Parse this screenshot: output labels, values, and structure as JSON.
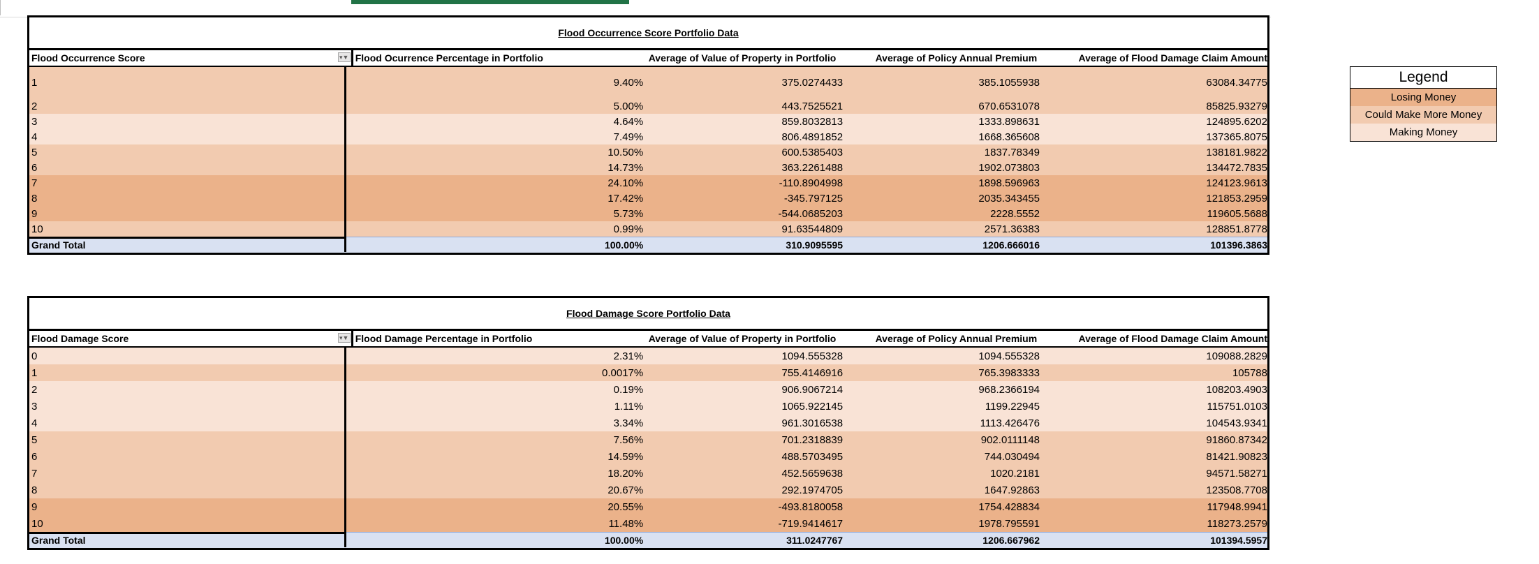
{
  "colors": {
    "losing_money": "#ebb28a",
    "could_make_more_money": "#f2cbb0",
    "making_money": "#f9e3d6",
    "grand_total": "#d9e1f2",
    "selection_accent": "#217346"
  },
  "table1": {
    "title": "Flood Occurrence Score Portfolio Data",
    "headers": [
      "Flood Occurrence Score",
      "Flood Ocurrence Percentage in Portfolio",
      "Average of Value of Property in Portfolio",
      "Average of Policy Annual Premium",
      "Average of Flood Damage Claim Amount"
    ],
    "rows": [
      {
        "score": "1",
        "pct": "9.40%",
        "value": "375.0274433",
        "premium": "385.1055938",
        "claim": "63084.34775",
        "status": "more"
      },
      {
        "score": "2",
        "pct": "5.00%",
        "value": "443.7525521",
        "premium": "670.6531078",
        "claim": "85825.93279",
        "status": "more"
      },
      {
        "score": "3",
        "pct": "4.64%",
        "value": "859.8032813",
        "premium": "1333.898631",
        "claim": "124895.6202",
        "status": "make"
      },
      {
        "score": "4",
        "pct": "7.49%",
        "value": "806.4891852",
        "premium": "1668.365608",
        "claim": "137365.8075",
        "status": "make"
      },
      {
        "score": "5",
        "pct": "10.50%",
        "value": "600.5385403",
        "premium": "1837.78349",
        "claim": "138181.9822",
        "status": "more"
      },
      {
        "score": "6",
        "pct": "14.73%",
        "value": "363.2261488",
        "premium": "1902.073803",
        "claim": "134472.7835",
        "status": "more"
      },
      {
        "score": "7",
        "pct": "24.10%",
        "value": "-110.8904998",
        "premium": "1898.596963",
        "claim": "124123.9613",
        "status": "lose"
      },
      {
        "score": "8",
        "pct": "17.42%",
        "value": "-345.797125",
        "premium": "2035.343455",
        "claim": "121853.2959",
        "status": "lose"
      },
      {
        "score": "9",
        "pct": "5.73%",
        "value": "-544.0685203",
        "premium": "2228.5552",
        "claim": "119605.5688",
        "status": "lose"
      },
      {
        "score": "10",
        "pct": "0.99%",
        "value": "91.63544809",
        "premium": "2571.36383",
        "claim": "128851.8778",
        "status": "more"
      }
    ],
    "total": {
      "label": "Grand Total",
      "pct": "100.00%",
      "value": "310.9095595",
      "premium": "1206.666016",
      "claim": "101396.3863"
    }
  },
  "table2": {
    "title": "Flood Damage Score Portfolio Data",
    "headers": [
      "Flood Damage Score",
      "Flood Damage Percentage in Portfolio",
      "Average of Value of Property in Portfolio",
      "Average of Policy Annual Premium",
      "Average of Flood Damage Claim Amount"
    ],
    "rows": [
      {
        "score": "0",
        "pct": "2.31%",
        "value": "1094.555328",
        "premium": "1094.555328",
        "claim": "109088.2829",
        "status": "make"
      },
      {
        "score": "1",
        "pct": "0.0017%",
        "value": "755.4146916",
        "premium": "765.3983333",
        "claim": "105788",
        "status": "more"
      },
      {
        "score": "2",
        "pct": "0.19%",
        "value": "906.9067214",
        "premium": "968.2366194",
        "claim": "108203.4903",
        "status": "make"
      },
      {
        "score": "3",
        "pct": "1.11%",
        "value": "1065.922145",
        "premium": "1199.22945",
        "claim": "115751.0103",
        "status": "make"
      },
      {
        "score": "4",
        "pct": "3.34%",
        "value": "961.3016538",
        "premium": "1113.426476",
        "claim": "104543.9341",
        "status": "make"
      },
      {
        "score": "5",
        "pct": "7.56%",
        "value": "701.2318839",
        "premium": "902.0111148",
        "claim": "91860.87342",
        "status": "more"
      },
      {
        "score": "6",
        "pct": "14.59%",
        "value": "488.5703495",
        "premium": "744.030494",
        "claim": "81421.90823",
        "status": "more"
      },
      {
        "score": "7",
        "pct": "18.20%",
        "value": "452.5659638",
        "premium": "1020.2181",
        "claim": "94571.58271",
        "status": "more"
      },
      {
        "score": "8",
        "pct": "20.67%",
        "value": "292.1974705",
        "premium": "1647.92863",
        "claim": "123508.7708",
        "status": "more"
      },
      {
        "score": "9",
        "pct": "20.55%",
        "value": "-493.8180058",
        "premium": "1754.428834",
        "claim": "117948.9941",
        "status": "lose"
      },
      {
        "score": "10",
        "pct": "11.48%",
        "value": "-719.9414617",
        "premium": "1978.795591",
        "claim": "118273.2579",
        "status": "lose"
      }
    ],
    "total": {
      "label": "Grand Total",
      "pct": "100.00%",
      "value": "311.0247767",
      "premium": "1206.667962",
      "claim": "101394.5957"
    }
  },
  "legend": {
    "title": "Legend",
    "items": [
      {
        "label": "Losing Money",
        "status": "lose"
      },
      {
        "label": "Could Make More Money",
        "status": "more"
      },
      {
        "label": "Making Money",
        "status": "make"
      }
    ]
  },
  "icons": {
    "filter": "filter-dropdown-icon"
  }
}
